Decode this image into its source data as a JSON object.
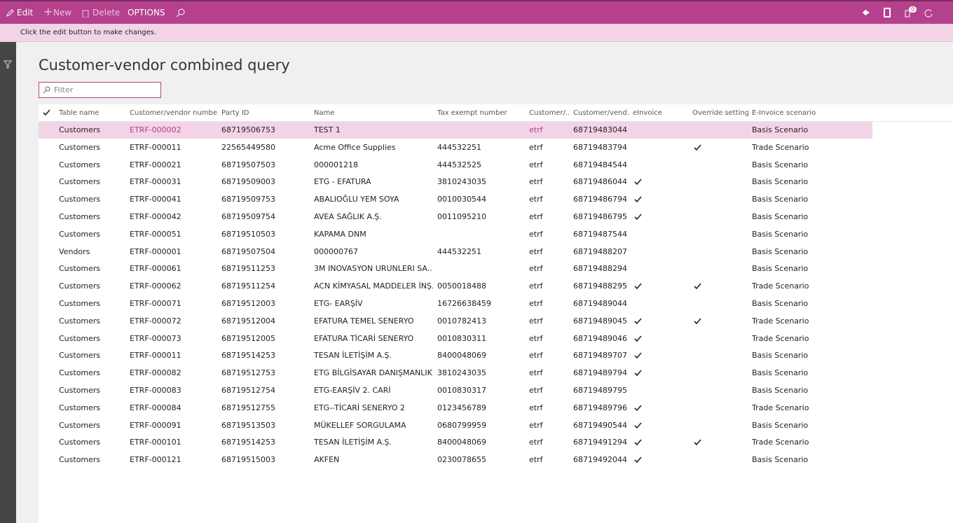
{
  "toolbar": {
    "edit": "Edit",
    "new": "New",
    "delete": "Delete",
    "options": "OPTIONS",
    "notifications": "0"
  },
  "message": "Click the edit button to make changes.",
  "title": "Customer-vendor combined query",
  "filter_placeholder": "Filter",
  "table": {
    "columns": [
      "Table name",
      "Customer/vendor number",
      "Party ID",
      "Name",
      "Tax exempt number",
      "Customer/...",
      "Customer/vend...",
      "eInvoice",
      "Override settings",
      "E-Invoice scenario"
    ],
    "rows": [
      [
        "Customers",
        "ETRF-000002",
        "68719506753",
        "TEST 1",
        null,
        "etrf",
        "68719483044",
        false,
        false,
        "Basis Scenario"
      ],
      [
        "Customers",
        "ETRF-000011",
        "22565449580",
        "Acme Office Supplies",
        "444532251",
        "etrf",
        "68719483794",
        false,
        true,
        "Trade Scenario"
      ],
      [
        "Customers",
        "ETRF-000021",
        "68719507503",
        "000001218",
        "444532525",
        "etrf",
        "68719484544",
        false,
        false,
        "Basis Scenario"
      ],
      [
        "Customers",
        "ETRF-000031",
        "68719509003",
        "ETG - EFATURA",
        "3810243035",
        "etrf",
        "68719486044",
        true,
        false,
        "Basis Scenario"
      ],
      [
        "Customers",
        "ETRF-000041",
        "68719509753",
        "ABALIOĞLU YEM SOYA",
        "0010030544",
        "etrf",
        "68719486794",
        true,
        false,
        "Basis Scenario"
      ],
      [
        "Customers",
        "ETRF-000042",
        "68719509754",
        "AVEA SAĞLIK A.Ş.",
        "0011095210",
        "etrf",
        "68719486795",
        true,
        false,
        "Basis Scenario"
      ],
      [
        "Customers",
        "ETRF-000051",
        "68719510503",
        "KAPAMA DNM",
        null,
        "etrf",
        "68719487544",
        false,
        false,
        "Basis Scenario"
      ],
      [
        "Vendors",
        "ETRF-000001",
        "68719507504",
        "000000767",
        "444532251",
        "etrf",
        "68719488207",
        false,
        false,
        "Basis Scenario"
      ],
      [
        "Customers",
        "ETRF-000061",
        "68719511253",
        "3M INOVASYON URUNLERI SA...",
        null,
        "etrf",
        "68719488294",
        false,
        false,
        "Basis Scenario"
      ],
      [
        "Customers",
        "ETRF-000062",
        "68719511254",
        "ACN KİMYASAL MADDELER İNŞ...",
        "0050018488",
        "etrf",
        "68719488295",
        true,
        true,
        "Trade Scenario"
      ],
      [
        "Customers",
        "ETRF-000071",
        "68719512003",
        "ETG- EARŞİV",
        "16726638459",
        "etrf",
        "68719489044",
        false,
        false,
        "Basis Scenario"
      ],
      [
        "Customers",
        "ETRF-000072",
        "68719512004",
        "EFATURA TEMEL SENERYO",
        "0010782413",
        "etrf",
        "68719489045",
        true,
        true,
        "Trade Scenario"
      ],
      [
        "Customers",
        "ETRF-000073",
        "68719512005",
        "EFATURA TİCARİ SENERYO",
        "0010830311",
        "etrf",
        "68719489046",
        true,
        false,
        "Trade Scenario"
      ],
      [
        "Customers",
        "ETRF-000011",
        "68719514253",
        "TESAN İLETİŞİM A.Ş.",
        "8400048069",
        "etrf",
        "68719489707",
        true,
        false,
        "Basis Scenario"
      ],
      [
        "Customers",
        "ETRF-000082",
        "68719512753",
        "ETG BİLGİSAYAR DANIŞMANLIK...",
        "3810243035",
        "etrf",
        "68719489794",
        true,
        false,
        "Basis Scenario"
      ],
      [
        "Customers",
        "ETRF-000083",
        "68719512754",
        "ETG-EARŞİV 2. CARİ",
        "0010830317",
        "etrf",
        "68719489795",
        false,
        false,
        "Basis Scenario"
      ],
      [
        "Customers",
        "ETRF-000084",
        "68719512755",
        "ETG--TİCARİ SENERYO 2",
        "0123456789",
        "etrf",
        "68719489796",
        true,
        false,
        "Trade Scenario"
      ],
      [
        "Customers",
        "ETRF-000091",
        "68719513503",
        "MÜKELLEF SORGULAMA",
        "0680799959",
        "etrf",
        "68719490544",
        true,
        false,
        "Basis Scenario"
      ],
      [
        "Customers",
        "ETRF-000101",
        "68719514253",
        "TESAN İLETİŞİM A.Ş.",
        "8400048069",
        "etrf",
        "68719491294",
        true,
        true,
        "Trade Scenario"
      ],
      [
        "Customers",
        "ETRF-000121",
        "68719515003",
        "AKFEN",
        "0230078655",
        "etrf",
        "68719492044",
        true,
        false,
        "Basis Scenario"
      ]
    ]
  }
}
